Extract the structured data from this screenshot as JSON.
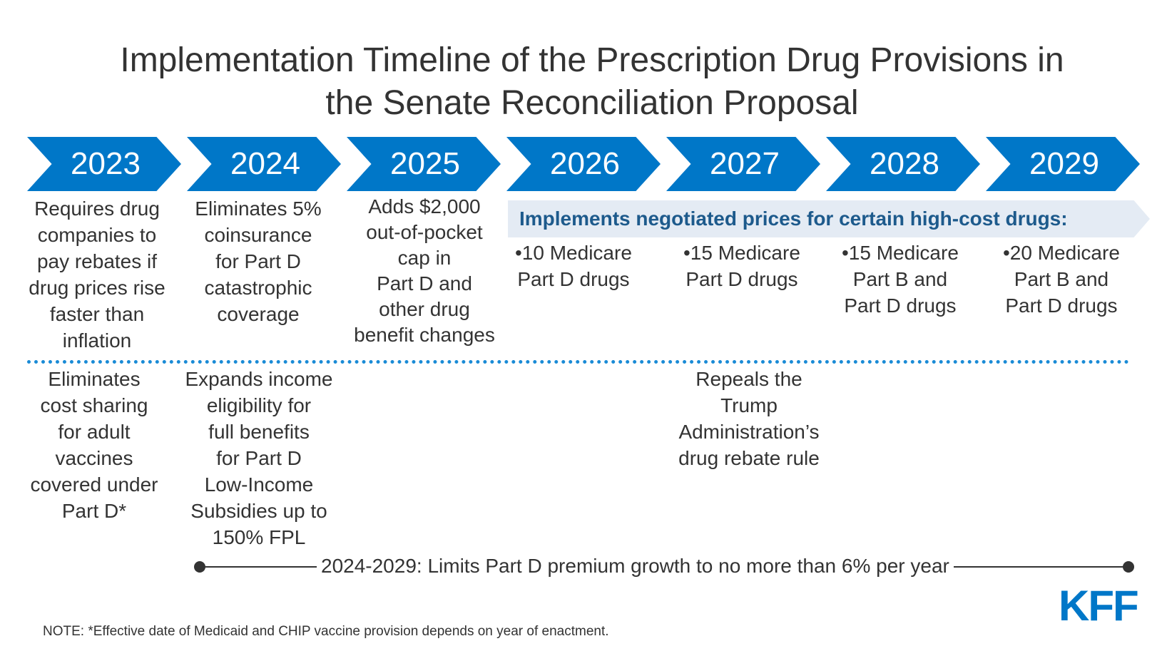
{
  "title": {
    "line1": "Implementation Timeline of the Prescription Drug Provisions in",
    "line2": "the Senate Reconciliation Proposal"
  },
  "years": [
    "2023",
    "2024",
    "2025",
    "2026",
    "2027",
    "2028",
    "2029"
  ],
  "upper": {
    "y2023": [
      "Requires drug",
      "companies to",
      "pay rebates if",
      "drug prices rise",
      "faster than",
      "inflation"
    ],
    "y2024": [
      "Eliminates 5%",
      "coinsurance",
      "for Part D",
      "catastrophic",
      "coverage"
    ],
    "y2025": [
      "Adds $2,000",
      "out-of-pocket",
      "cap in",
      "Part D and",
      "other drug",
      "benefit changes"
    ]
  },
  "negotiated": {
    "label": "Implements negotiated prices for certain high-cost drugs:",
    "items": [
      [
        "•10 Medicare",
        "Part D drugs"
      ],
      [
        "•15 Medicare",
        "Part D drugs"
      ],
      [
        "•15 Medicare",
        "Part B and",
        "Part D drugs"
      ],
      [
        "•20 Medicare",
        "Part B and",
        "Part D drugs"
      ]
    ]
  },
  "lower": {
    "y2023": [
      "Eliminates",
      "cost sharing",
      "for adult",
      "vaccines",
      "covered under",
      "Part D*"
    ],
    "y2024": [
      "Expands income",
      "eligibility for",
      "full benefits",
      "for Part D",
      "Low-Income",
      "Subsidies up to",
      "150% FPL"
    ],
    "y2027": [
      "Repeals the",
      "Trump",
      "Administration’s",
      "drug rebate rule"
    ]
  },
  "premium": "2024-2029: Limits Part D premium growth to no more than 6% per year",
  "note": "NOTE: *Effective date of Medicaid and CHIP vaccine provision depends on year of enactment.",
  "logo": "KFF",
  "colors": {
    "chevron": "#0077c8",
    "band": "#e4ebf4",
    "band_text": "#1d5a8c",
    "divider": "#1a8bd6",
    "text": "#333333"
  }
}
